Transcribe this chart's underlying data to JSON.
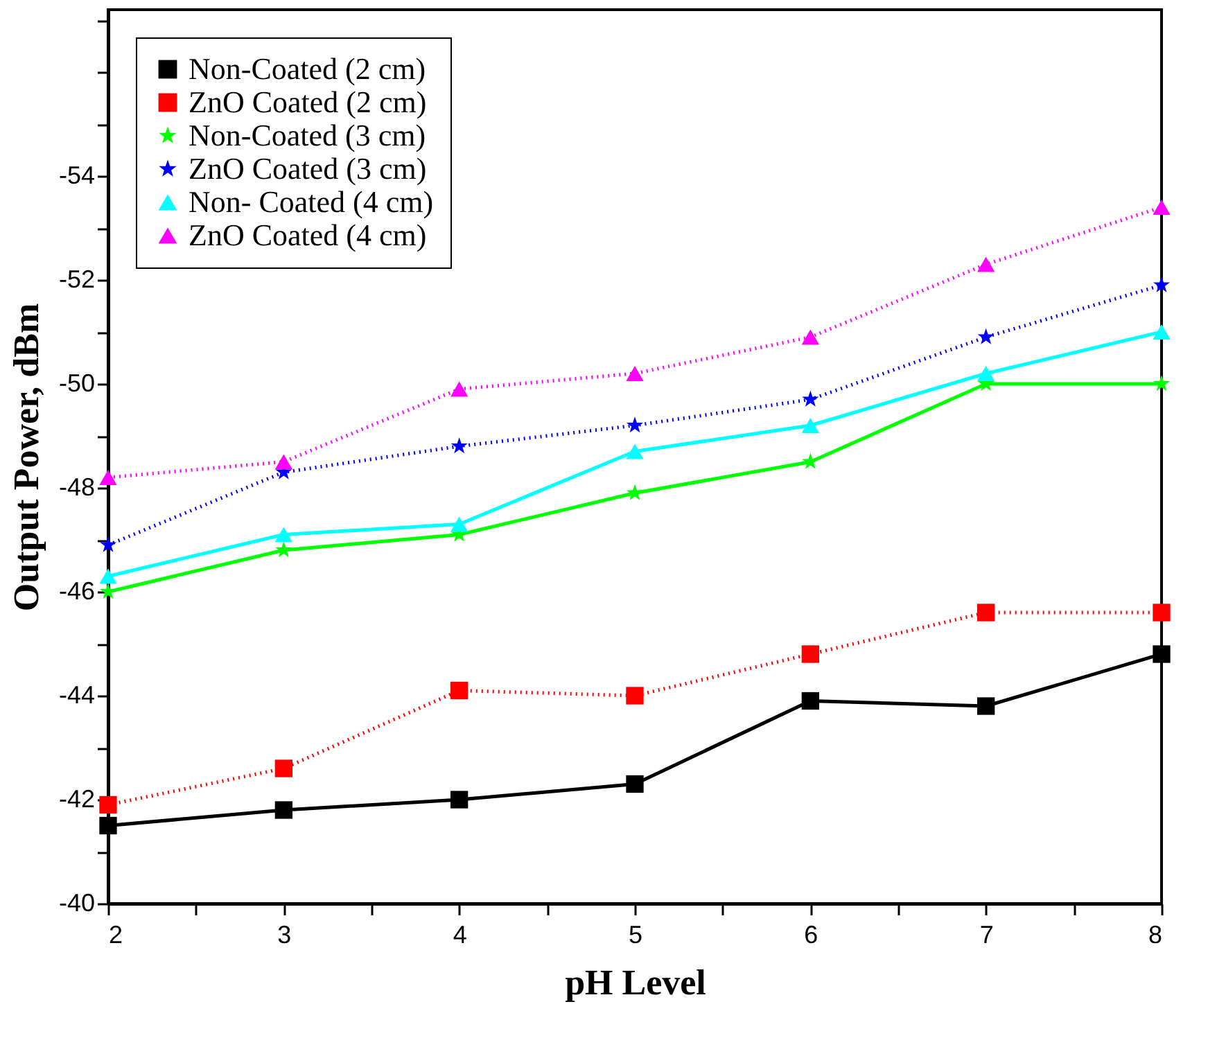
{
  "chart_data": {
    "type": "line",
    "xlabel": "pH Level",
    "ylabel": "Output Power, dBm",
    "x": [
      2,
      3,
      4,
      5,
      6,
      7,
      8
    ],
    "xlim": [
      2,
      8
    ],
    "xticks": [
      2,
      {
        "value": 2.5,
        "label": null
      },
      3,
      {
        "value": 3.5,
        "label": null
      },
      4,
      {
        "value": 4.5,
        "label": null
      },
      5,
      {
        "value": 5.5,
        "label": null
      },
      6,
      {
        "value": 6.5,
        "label": null
      },
      7,
      {
        "value": 7.5,
        "label": null
      },
      8
    ],
    "ylim": [
      -40,
      -57.2
    ],
    "yticks": [
      -40,
      {
        "value": -41,
        "label": null
      },
      -42,
      {
        "value": -43,
        "label": null
      },
      -44,
      {
        "value": -45,
        "label": null
      },
      -46,
      {
        "value": -47,
        "label": null
      },
      -48,
      {
        "value": -49,
        "label": null
      },
      -50,
      {
        "value": -51,
        "label": null
      },
      -52,
      {
        "value": -53,
        "label": null
      },
      -54,
      {
        "value": -55,
        "label": null
      },
      {
        "value": -56,
        "label": null
      },
      {
        "value": -57,
        "label": null
      }
    ],
    "grid": false,
    "legend": "top left",
    "series": [
      {
        "name": "Non-Coated (2 cm)",
        "color": "#000000",
        "marker": "square",
        "line_style": "solid",
        "values": [
          -41.5,
          -41.8,
          -42.0,
          -42.3,
          -43.9,
          -43.8,
          -44.8
        ]
      },
      {
        "name": "ZnO Coated (2 cm)",
        "color": "#ff0000",
        "marker": "square",
        "line_style": "dotted",
        "values": [
          -41.9,
          -42.6,
          -44.1,
          -44.0,
          -44.8,
          -45.6,
          -45.6
        ]
      },
      {
        "name": "Non-Coated (3 cm)",
        "color": "#00ff00",
        "marker": "star",
        "line_style": "solid",
        "values": [
          -46.0,
          -46.8,
          -47.1,
          -47.9,
          -48.5,
          -50.0,
          -50.0
        ]
      },
      {
        "name": "ZnO Coated (3 cm)",
        "color": "#0000ff",
        "marker": "star",
        "line_style": "dotted",
        "values": [
          -46.9,
          -48.3,
          -48.8,
          -49.2,
          -49.7,
          -50.9,
          -51.9
        ]
      },
      {
        "name": "Non- Coated (4 cm)",
        "color": "#00ffff",
        "marker": "triangle",
        "line_style": "solid",
        "values": [
          -46.3,
          -47.1,
          -47.3,
          -48.7,
          -49.2,
          -50.2,
          -51.0
        ]
      },
      {
        "name": "ZnO Coated (4 cm)",
        "color": "#ff00ff",
        "marker": "triangle",
        "line_style": "dotted",
        "values": [
          -48.2,
          -48.5,
          -49.9,
          -50.2,
          -50.9,
          -52.3,
          -53.4
        ]
      }
    ]
  }
}
